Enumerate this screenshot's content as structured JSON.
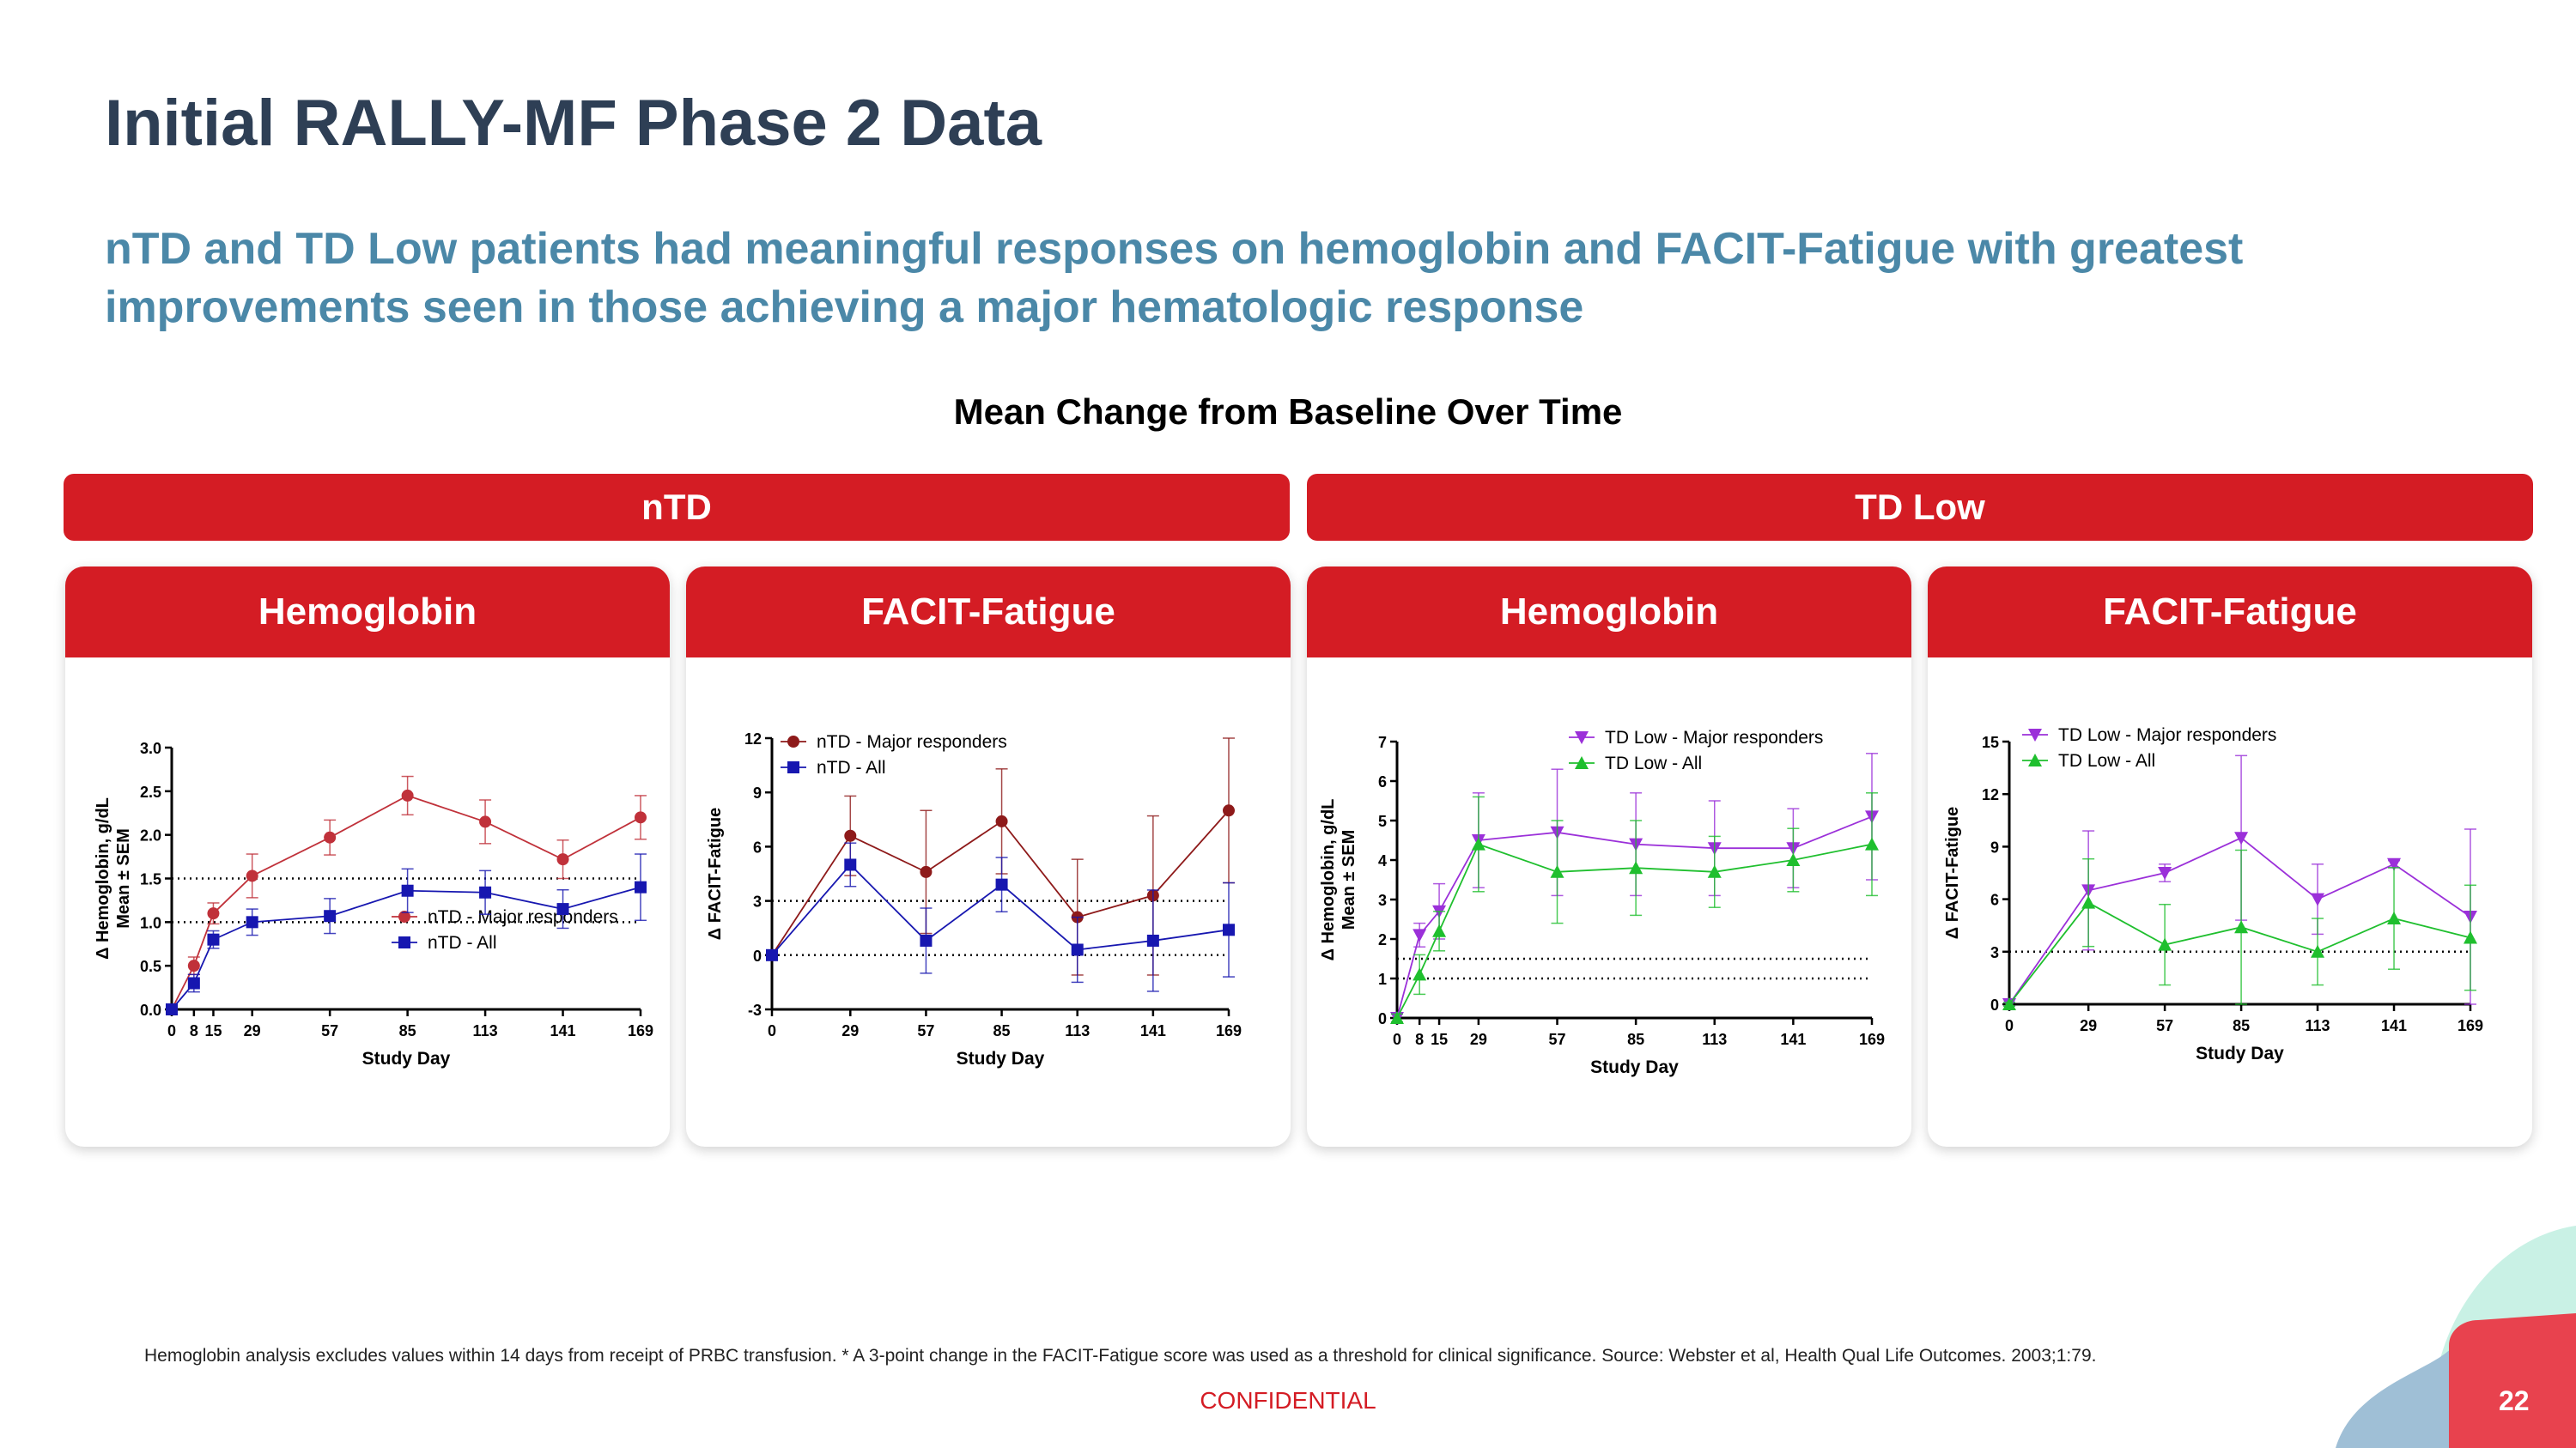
{
  "slide": {
    "title": "Initial RALLY-MF Phase 2 Data",
    "subtitle": "nTD and TD Low patients had meaningful responses on hemoglobin and FACIT-Fatigue with greatest improvements seen in those achieving a major hematologic response",
    "charts_title": "Mean Change from Baseline Over Time",
    "groups": [
      "nTD",
      "TD Low"
    ],
    "footnote": "Hemoglobin analysis excludes values within 14 days from receipt of PRBC transfusion. * A 3-point change in the FACIT-Fatigue score was used as a threshold for clinical significance. Source: Webster et al, Health Qual Life Outcomes. 2003;1:79.",
    "confidential": "CONFIDENTIAL",
    "page_number": "22"
  },
  "colors": {
    "brand_red": "#d41c24",
    "title": "#2e3f55",
    "subtitle": "#4b88a8"
  },
  "chart_data": [
    {
      "type": "line",
      "panel_title": "Hemoglobin",
      "group": "nTD",
      "xlabel": "Study Day",
      "ylabel": [
        "Δ Hemoglobin, g/dL",
        "Mean ± SEM"
      ],
      "x_ticks": [
        0,
        8,
        15,
        29,
        57,
        85,
        113,
        141,
        169
      ],
      "y_ticks": [
        0.0,
        0.5,
        1.0,
        1.5,
        2.0,
        2.5,
        3.0
      ],
      "y_tick_labels": [
        "0.0",
        "0.5",
        "1.0",
        "1.5",
        "2.0",
        "2.5",
        "3.0"
      ],
      "ylim": [
        0,
        3.0
      ],
      "reference_lines": [
        1.0,
        1.5
      ],
      "legend_position": "bottom-right",
      "series": [
        {
          "name": "nTD - Major responders",
          "color": "#c0313a",
          "marker": "circle",
          "x": [
            0,
            8,
            15,
            29,
            57,
            85,
            113,
            141,
            169
          ],
          "values": [
            0.0,
            0.5,
            1.1,
            1.53,
            1.97,
            2.45,
            2.15,
            1.72,
            2.2
          ],
          "err": [
            0.03,
            0.1,
            0.12,
            0.25,
            0.2,
            0.22,
            0.25,
            0.22,
            0.25
          ]
        },
        {
          "name": "nTD - All",
          "color": "#1717b0",
          "marker": "square",
          "x": [
            0,
            8,
            15,
            29,
            57,
            85,
            113,
            141,
            169
          ],
          "values": [
            0.0,
            0.3,
            0.8,
            1.0,
            1.07,
            1.36,
            1.34,
            1.15,
            1.4
          ],
          "err": [
            0.03,
            0.1,
            0.1,
            0.15,
            0.2,
            0.25,
            0.25,
            0.22,
            0.38
          ]
        }
      ]
    },
    {
      "type": "line",
      "panel_title": "FACIT-Fatigue",
      "group": "nTD",
      "xlabel": "Study Day",
      "ylabel": [
        "Δ FACIT-Fatigue"
      ],
      "x_ticks": [
        0,
        29,
        57,
        85,
        113,
        141,
        169
      ],
      "y_ticks": [
        -3,
        0,
        3,
        6,
        9,
        12
      ],
      "y_tick_labels": [
        "-3",
        "0",
        "3",
        "6",
        "9",
        "12"
      ],
      "ylim": [
        -3,
        12
      ],
      "reference_lines": [
        0,
        3
      ],
      "legend_position": "top-left",
      "series": [
        {
          "name": "nTD - Major responders",
          "color": "#8e1a1a",
          "marker": "circle",
          "x": [
            0,
            29,
            57,
            85,
            113,
            141,
            169
          ],
          "values": [
            0,
            6.6,
            4.6,
            7.4,
            2.1,
            3.3,
            8.0
          ],
          "err": [
            0.1,
            2.2,
            3.4,
            2.9,
            3.2,
            4.4,
            4.0
          ]
        },
        {
          "name": "nTD - All",
          "color": "#1717b0",
          "marker": "square",
          "x": [
            0,
            29,
            57,
            85,
            113,
            141,
            169
          ],
          "values": [
            0,
            5.0,
            0.8,
            3.9,
            0.3,
            0.8,
            1.4
          ],
          "err": [
            0.1,
            1.2,
            1.8,
            1.5,
            1.8,
            2.8,
            2.6
          ]
        }
      ]
    },
    {
      "type": "line",
      "panel_title": "Hemoglobin",
      "group": "TD Low",
      "xlabel": "Study Day",
      "ylabel": [
        "Δ Hemoglobin, g/dL",
        "Mean ± SEM"
      ],
      "x_ticks": [
        0,
        8,
        15,
        29,
        57,
        85,
        113,
        141,
        169
      ],
      "y_ticks": [
        0,
        1,
        2,
        3,
        4,
        5,
        6,
        7
      ],
      "y_tick_labels": [
        "0",
        "1",
        "2",
        "3",
        "4",
        "5",
        "6",
        "7"
      ],
      "ylim": [
        0,
        7
      ],
      "reference_lines": [
        1.0,
        1.5
      ],
      "legend_position": "top-right",
      "series": [
        {
          "name": "TD Low - Major responders",
          "color": "#9b30d9",
          "marker": "triangle-down",
          "x": [
            0,
            8,
            15,
            29,
            57,
            85,
            113,
            141,
            169
          ],
          "values": [
            0,
            2.1,
            2.7,
            4.5,
            4.7,
            4.4,
            4.3,
            4.3,
            5.1
          ],
          "err": [
            0.1,
            0.3,
            0.7,
            1.2,
            1.6,
            1.3,
            1.2,
            1.0,
            1.6
          ]
        },
        {
          "name": "TD Low - All",
          "color": "#1fbf2e",
          "marker": "triangle-up",
          "x": [
            0,
            8,
            15,
            29,
            57,
            85,
            113,
            141,
            169
          ],
          "values": [
            0,
            1.1,
            2.2,
            4.4,
            3.7,
            3.8,
            3.7,
            4.0,
            4.4
          ],
          "err": [
            0.1,
            0.5,
            0.5,
            1.2,
            1.3,
            1.2,
            0.9,
            0.8,
            1.3
          ]
        }
      ]
    },
    {
      "type": "line",
      "panel_title": "FACIT-Fatigue",
      "group": "TD Low",
      "xlabel": "Study Day",
      "ylabel": [
        "Δ FACIT-Fatigue"
      ],
      "x_ticks": [
        0,
        29,
        57,
        85,
        113,
        141,
        169
      ],
      "y_ticks": [
        0,
        3,
        6,
        9,
        12,
        15
      ],
      "y_tick_labels": [
        "0",
        "3",
        "6",
        "9",
        "12",
        "15"
      ],
      "ylim": [
        0,
        15
      ],
      "reference_lines": [
        0,
        3
      ],
      "legend_position": "top-left",
      "series": [
        {
          "name": "TD Low - Major responders",
          "color": "#9b30d9",
          "marker": "triangle-down",
          "x": [
            0,
            29,
            57,
            85,
            113,
            141,
            169
          ],
          "values": [
            0,
            6.5,
            7.5,
            9.5,
            6.0,
            8.0,
            5.0
          ],
          "err": [
            0.1,
            3.4,
            0.5,
            4.7,
            2.0,
            0.2,
            5.0
          ]
        },
        {
          "name": "TD Low - All",
          "color": "#1fbf2e",
          "marker": "triangle-up",
          "x": [
            0,
            29,
            57,
            85,
            113,
            141,
            169
          ],
          "values": [
            0,
            5.8,
            3.4,
            4.4,
            3.0,
            4.9,
            3.8
          ],
          "err": [
            0.1,
            2.5,
            2.3,
            4.4,
            1.9,
            2.9,
            3.0
          ]
        }
      ]
    }
  ]
}
